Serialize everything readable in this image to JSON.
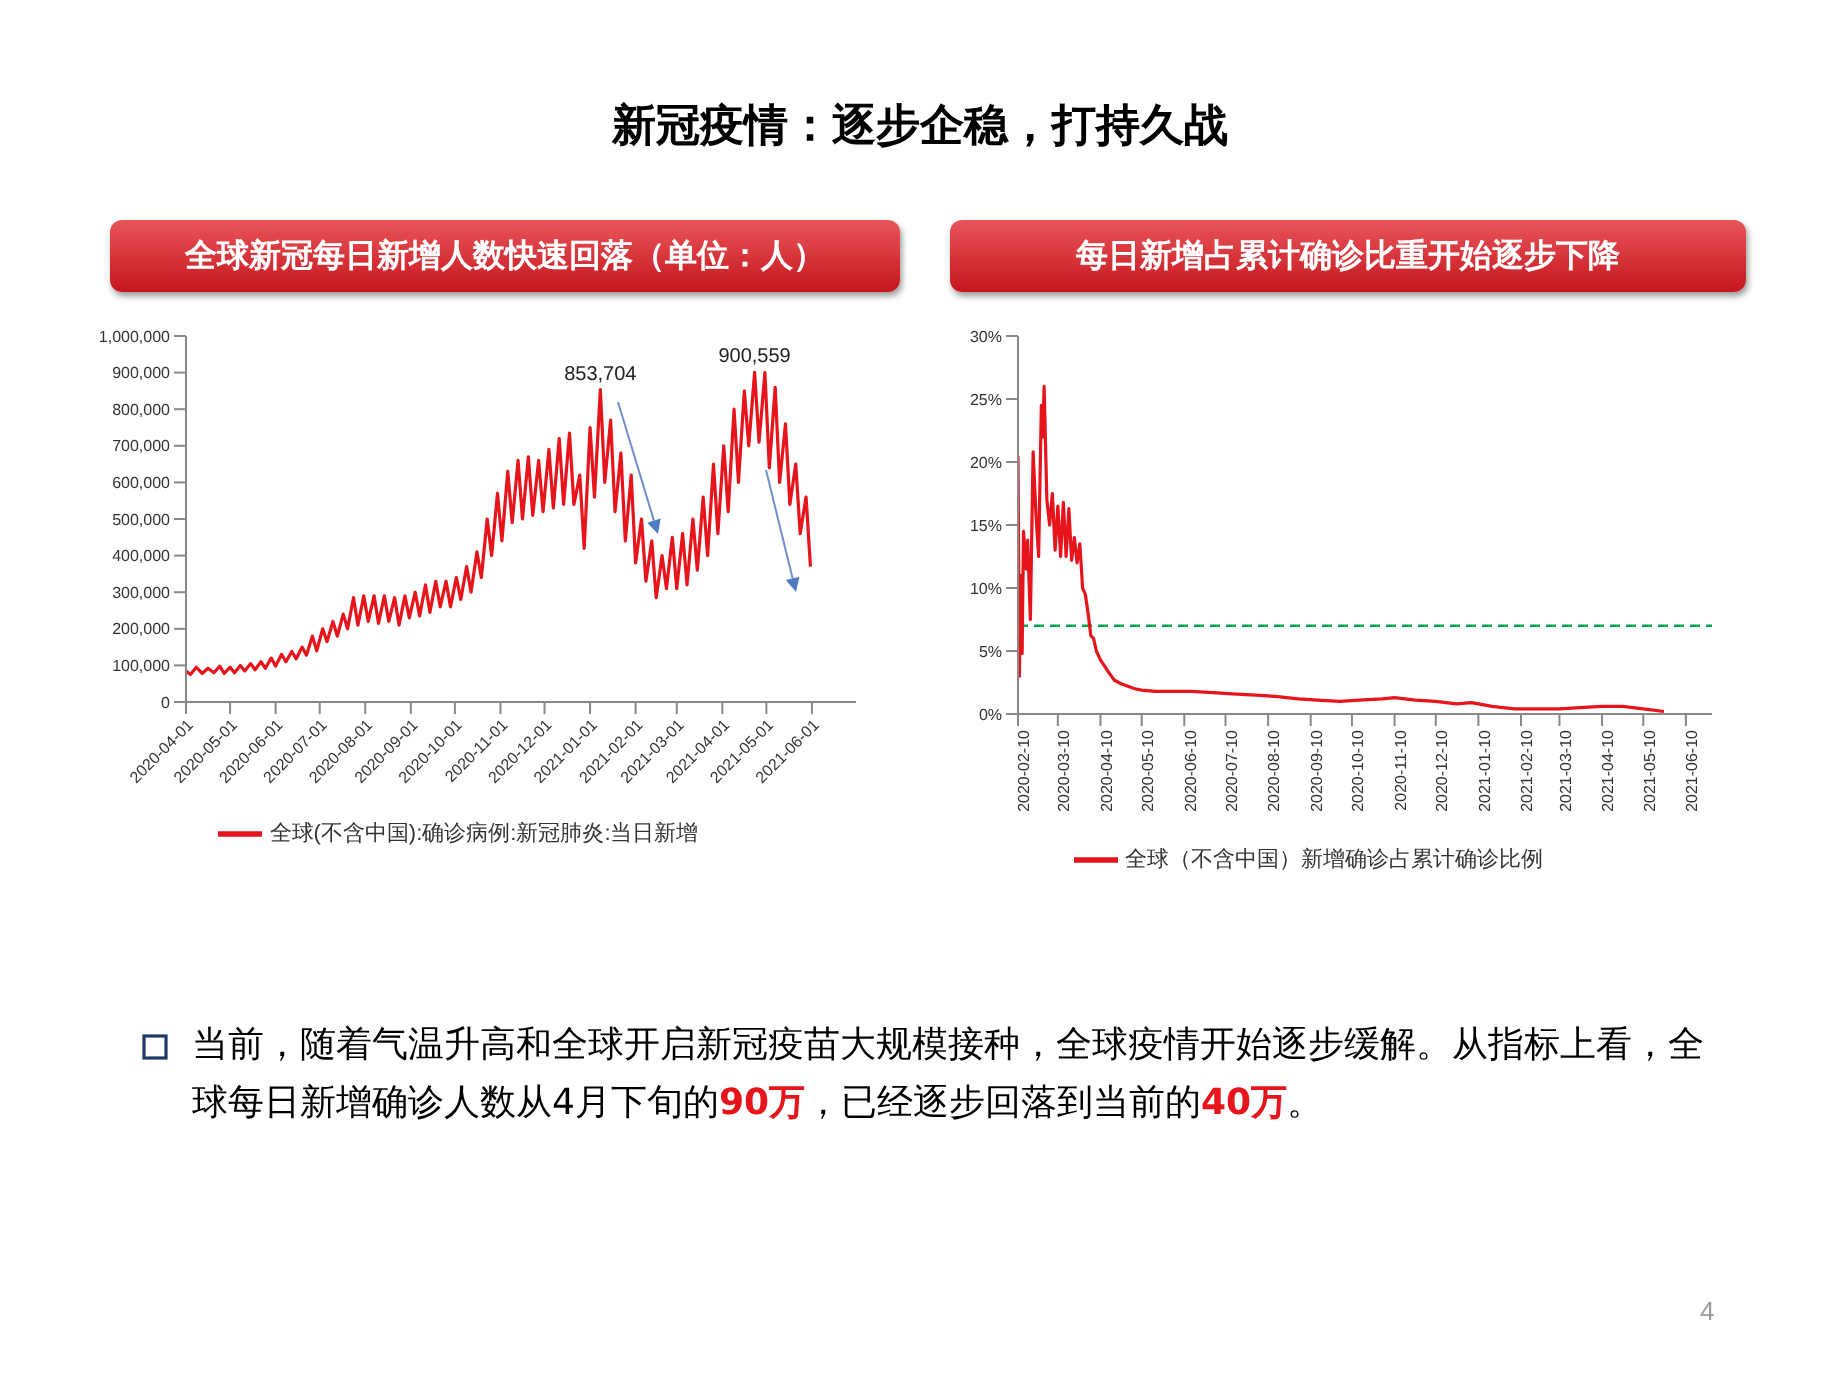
{
  "chart_data": [
    {
      "type": "line",
      "title": "全球新冠每日新增人数快速回落（单位：人）",
      "legend": "bottom",
      "x": [
        "2020-04-01",
        "2020-04-04",
        "2020-04-08",
        "2020-04-12",
        "2020-04-16",
        "2020-04-20",
        "2020-04-24",
        "2020-04-27",
        "2020-05-01",
        "2020-05-04",
        "2020-05-08",
        "2020-05-11",
        "2020-05-15",
        "2020-05-18",
        "2020-05-22",
        "2020-05-25",
        "2020-05-29",
        "2020-06-01",
        "2020-06-05",
        "2020-06-08",
        "2020-06-12",
        "2020-06-15",
        "2020-06-19",
        "2020-06-22",
        "2020-06-26",
        "2020-06-29",
        "2020-07-03",
        "2020-07-06",
        "2020-07-10",
        "2020-07-13",
        "2020-07-17",
        "2020-07-20",
        "2020-07-24",
        "2020-07-27",
        "2020-07-31",
        "2020-08-03",
        "2020-08-07",
        "2020-08-10",
        "2020-08-14",
        "2020-08-17",
        "2020-08-21",
        "2020-08-24",
        "2020-08-28",
        "2020-08-31",
        "2020-09-04",
        "2020-09-07",
        "2020-09-11",
        "2020-09-14",
        "2020-09-18",
        "2020-09-21",
        "2020-09-25",
        "2020-09-28",
        "2020-10-02",
        "2020-10-05",
        "2020-10-09",
        "2020-10-12",
        "2020-10-16",
        "2020-10-19",
        "2020-10-23",
        "2020-10-26",
        "2020-10-30",
        "2020-11-02",
        "2020-11-06",
        "2020-11-09",
        "2020-11-13",
        "2020-11-16",
        "2020-11-20",
        "2020-11-23",
        "2020-11-27",
        "2020-11-30",
        "2020-12-04",
        "2020-12-07",
        "2020-12-11",
        "2020-12-14",
        "2020-12-18",
        "2020-12-21",
        "2020-12-25",
        "2020-12-28",
        "2021-01-01",
        "2021-01-04",
        "2021-01-08",
        "2021-01-11",
        "2021-01-15",
        "2021-01-18",
        "2021-01-22",
        "2021-01-25",
        "2021-01-29",
        "2021-02-01",
        "2021-02-05",
        "2021-02-08",
        "2021-02-12",
        "2021-02-15",
        "2021-02-19",
        "2021-02-22",
        "2021-02-26",
        "2021-03-01",
        "2021-03-05",
        "2021-03-08",
        "2021-03-12",
        "2021-03-15",
        "2021-03-19",
        "2021-03-22",
        "2021-03-26",
        "2021-03-29",
        "2021-04-02",
        "2021-04-05",
        "2021-04-09",
        "2021-04-12",
        "2021-04-16",
        "2021-04-19",
        "2021-04-23",
        "2021-04-26",
        "2021-04-30",
        "2021-05-03",
        "2021-05-07",
        "2021-05-10",
        "2021-05-14",
        "2021-05-17",
        "2021-05-21",
        "2021-05-24",
        "2021-05-28",
        "2021-05-31"
      ],
      "series": [
        {
          "name": "全球(不含中国):确诊病例:新冠肺炎:当日新增",
          "color": "#e8141b",
          "values": [
            85000,
            75000,
            95000,
            78000,
            92000,
            80000,
            98000,
            78000,
            95000,
            80000,
            100000,
            85000,
            105000,
            88000,
            110000,
            92000,
            120000,
            98000,
            130000,
            110000,
            138000,
            118000,
            150000,
            128000,
            180000,
            140000,
            200000,
            165000,
            220000,
            180000,
            240000,
            200000,
            285000,
            210000,
            290000,
            220000,
            290000,
            215000,
            290000,
            220000,
            285000,
            210000,
            290000,
            230000,
            300000,
            235000,
            320000,
            245000,
            330000,
            260000,
            330000,
            260000,
            340000,
            280000,
            370000,
            300000,
            410000,
            340000,
            500000,
            400000,
            570000,
            440000,
            630000,
            490000,
            660000,
            500000,
            670000,
            510000,
            660000,
            520000,
            690000,
            530000,
            720000,
            540000,
            735000,
            540000,
            620000,
            420000,
            750000,
            560000,
            853704,
            600000,
            770000,
            520000,
            680000,
            440000,
            620000,
            380000,
            500000,
            330000,
            440000,
            285000,
            400000,
            310000,
            450000,
            310000,
            460000,
            320000,
            500000,
            360000,
            560000,
            400000,
            650000,
            460000,
            700000,
            520000,
            800000,
            600000,
            850000,
            700000,
            900559,
            710000,
            900000,
            640000,
            860000,
            600000,
            760000,
            540000,
            650000,
            460000,
            560000,
            370000
          ]
        }
      ],
      "xlim": [
        "2020-04-01",
        "2021-07-01"
      ],
      "xticks": [
        "2020-04-01",
        "2020-05-01",
        "2020-06-01",
        "2020-07-01",
        "2020-08-01",
        "2020-09-01",
        "2020-10-01",
        "2020-11-01",
        "2020-12-01",
        "2021-01-01",
        "2021-02-01",
        "2021-03-01",
        "2021-04-01",
        "2021-05-01",
        "2021-06-01"
      ],
      "ylim": [
        0,
        1000000
      ],
      "yticks": [
        0,
        {
          "value": 100000,
          "label": "100,000"
        },
        {
          "value": 200000,
          "label": "200,000"
        },
        {
          "value": 300000,
          "label": "300,000"
        },
        {
          "value": 400000,
          "label": "400,000"
        },
        {
          "value": 500000,
          "label": "500,000"
        },
        {
          "value": 600000,
          "label": "600,000"
        },
        {
          "value": 700000,
          "label": "700,000"
        },
        {
          "value": 800000,
          "label": "800,000"
        },
        {
          "value": 900000,
          "label": "900,000"
        },
        {
          "value": 1000000,
          "label": "1,000,000"
        }
      ],
      "annotations": [
        {
          "text": "853,704",
          "x": "2021-01-08",
          "y": 853704
        },
        {
          "text": "900,559",
          "x": "2021-04-23",
          "y": 900559
        }
      ]
    },
    {
      "type": "line",
      "title": "每日新增占累计确诊比重开始逐步下降",
      "legend": "bottom",
      "x": [
        "2020-02-10",
        "2020-02-11",
        "2020-02-12",
        "2020-02-13",
        "2020-02-14",
        "2020-02-16",
        "2020-02-17",
        "2020-02-19",
        "2020-02-21",
        "2020-02-23",
        "2020-02-25",
        "2020-02-27",
        "2020-02-28",
        "2020-02-29",
        "2020-03-02",
        "2020-03-04",
        "2020-03-06",
        "2020-03-08",
        "2020-03-10",
        "2020-03-12",
        "2020-03-14",
        "2020-03-16",
        "2020-03-18",
        "2020-03-20",
        "2020-03-22",
        "2020-03-24",
        "2020-03-26",
        "2020-03-28",
        "2020-03-30",
        "2020-04-01",
        "2020-04-03",
        "2020-04-05",
        "2020-04-07",
        "2020-04-10",
        "2020-04-13",
        "2020-04-16",
        "2020-04-20",
        "2020-04-25",
        "2020-04-30",
        "2020-05-05",
        "2020-05-10",
        "2020-05-20",
        "2020-06-01",
        "2020-06-15",
        "2020-07-01",
        "2020-07-15",
        "2020-08-01",
        "2020-08-15",
        "2020-09-01",
        "2020-09-15",
        "2020-10-01",
        "2020-10-15",
        "2020-11-01",
        "2020-11-10",
        "2020-11-25",
        "2020-12-10",
        "2020-12-25",
        "2021-01-05",
        "2021-01-20",
        "2021-02-05",
        "2021-02-20",
        "2021-03-10",
        "2021-03-25",
        "2021-04-10",
        "2021-04-25",
        "2021-05-10",
        "2021-05-25"
      ],
      "series": [
        {
          "name": "全球（不含中国）新增确诊占累计确诊比例",
          "color": "#e8141b",
          "values": [
            20.5,
            3.0,
            11.0,
            4.8,
            14.5,
            11.5,
            13.8,
            7.5,
            20.8,
            16,
            12.5,
            24.5,
            22,
            26,
            17,
            15,
            17.5,
            13,
            16.5,
            12.5,
            16.8,
            12.5,
            16.3,
            12.2,
            14,
            12,
            13.5,
            10,
            9.5,
            8,
            6.2,
            6.0,
            5.0,
            4.3,
            3.8,
            3.3,
            2.7,
            2.4,
            2.2,
            2.0,
            1.9,
            1.8,
            1.8,
            1.8,
            1.7,
            1.6,
            1.5,
            1.4,
            1.2,
            1.1,
            1.0,
            1.1,
            1.2,
            1.3,
            1.1,
            1.0,
            0.8,
            0.9,
            0.6,
            0.4,
            0.4,
            0.4,
            0.5,
            0.6,
            0.6,
            0.4,
            0.2
          ]
        }
      ],
      "xlim": [
        "2020-02-10",
        "2021-06-29"
      ],
      "xticks": [
        "2020-02-10",
        "2020-03-10",
        "2020-04-10",
        "2020-05-10",
        "2020-06-10",
        "2020-07-10",
        "2020-08-10",
        "2020-09-10",
        "2020-10-10",
        "2020-11-10",
        "2020-12-10",
        "2021-01-10",
        "2021-02-10",
        "2021-03-10",
        "2021-04-10",
        "2021-05-10",
        "2021-06-10"
      ],
      "ylim": [
        0,
        30
      ],
      "yticks": [
        {
          "value": 0,
          "label": "0%"
        },
        {
          "value": 5,
          "label": "5%"
        },
        {
          "value": 10,
          "label": "10%"
        },
        {
          "value": 15,
          "label": "15%"
        },
        {
          "value": 20,
          "label": "20%"
        },
        {
          "value": 25,
          "label": "25%"
        },
        {
          "value": 30,
          "label": "30%"
        }
      ],
      "ref_lines": [
        {
          "axis": "y",
          "value": 7,
          "color": "#00a651",
          "line_style": "dashed"
        }
      ]
    },
    {
      "type": "other",
      "title": "新冠疫情：逐步企稳，打持久战",
      "annotations": [
        "当前，随着气温升高和全球开启新冠疫苗大规模接种，全球疫情开始逐步缓解。从指标上看，全球每日新增确诊人数从4月下旬的",
        "90万",
        "，已经逐步回落到当前的",
        "40万",
        "。",
        "4"
      ]
    }
  ]
}
